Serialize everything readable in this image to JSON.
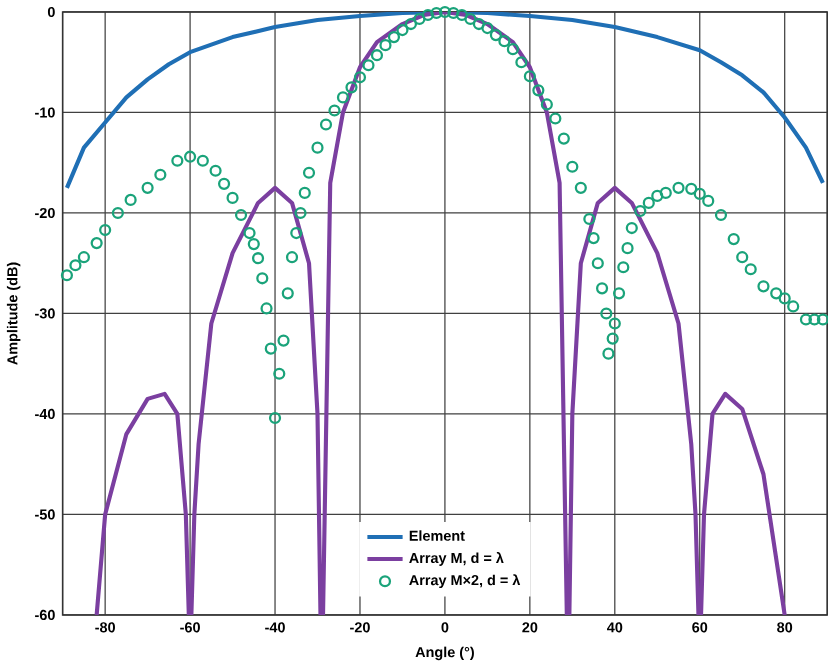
{
  "chart_data": {
    "type": "line",
    "xlabel": "Angle (°)",
    "ylabel": "Amplitude (dB)",
    "xlim": [
      -90,
      90
    ],
    "ylim": [
      -60,
      0
    ],
    "xticks": [
      -80,
      -60,
      -40,
      -20,
      0,
      20,
      40,
      60,
      80
    ],
    "yticks": [
      -60,
      -50,
      -40,
      -30,
      -20,
      -10,
      0
    ],
    "grid": true,
    "legend": "bottom",
    "series": [
      {
        "name": "Element",
        "color": "#1f6fb5",
        "x": [
          -89,
          -85,
          -80,
          -75,
          -70,
          -65,
          -60,
          -50,
          -40,
          -30,
          -20,
          -10,
          0,
          10,
          20,
          30,
          40,
          50,
          60,
          65,
          70,
          75,
          80,
          85,
          89
        ],
        "values": [
          -17.5,
          -13.5,
          -11,
          -8.5,
          -6.7,
          -5.2,
          -4,
          -2.5,
          -1.5,
          -0.8,
          -0.4,
          -0.1,
          0,
          -0.1,
          -0.4,
          -0.8,
          -1.5,
          -2.5,
          -3.8,
          -5,
          -6.3,
          -8,
          -10.5,
          -13.5,
          -17
        ]
      },
      {
        "name": "Array M, d = λ",
        "color": "#7b3fa0",
        "x": [
          -82,
          -80,
          -75,
          -70,
          -66,
          -63,
          -61,
          -60.3,
          -59.7,
          -59,
          -58,
          -55,
          -50,
          -44,
          -40,
          -36,
          -32,
          -30,
          -29.3,
          -28.7,
          -27,
          -24,
          -20,
          -16,
          -10,
          -5,
          0,
          5,
          10,
          16,
          20,
          24,
          27,
          28.7,
          29.3,
          30,
          32,
          36,
          40,
          44,
          50,
          55,
          58,
          59,
          59.7,
          60.3,
          61,
          63,
          66,
          70,
          75,
          80
        ],
        "values": [
          -60,
          -50,
          -42,
          -38.5,
          -38,
          -40,
          -50,
          -60,
          -60,
          -50,
          -43,
          -31,
          -24,
          -19,
          -17.5,
          -19,
          -25,
          -40,
          -60,
          -60,
          -17,
          -10,
          -5.5,
          -3,
          -1.2,
          -0.3,
          0,
          -0.3,
          -1.2,
          -3,
          -5.5,
          -10,
          -17,
          -60,
          -60,
          -40,
          -25,
          -19,
          -17.5,
          -19,
          -24,
          -31,
          -43,
          -50,
          -60,
          -60,
          -50,
          -40,
          -38,
          -39.5,
          -46,
          -60
        ]
      },
      {
        "name": "Array M×2, d = λ",
        "color": "#1aa37a",
        "type": "scatter",
        "marker": "circle",
        "x": [
          -89,
          -87,
          -85,
          -82,
          -80,
          -77,
          -74,
          -70,
          -67,
          -63,
          -60,
          -57,
          -54,
          -52,
          -50,
          -48,
          -46,
          -45,
          -44,
          -43,
          -42,
          -41,
          -40,
          -39,
          -38,
          -37,
          -36,
          -35,
          -34,
          -33,
          -32,
          -30,
          -28,
          -26,
          -24,
          -22,
          -20,
          -18,
          -16,
          -14,
          -12,
          -10,
          -8,
          -6,
          -4,
          -2,
          0,
          2,
          4,
          6,
          8,
          10,
          12,
          14,
          16,
          18,
          20,
          22,
          24,
          26,
          28,
          30,
          32,
          34,
          35,
          36,
          37,
          38,
          38.5,
          39.5,
          40,
          41,
          42,
          43,
          44,
          46,
          48,
          50,
          52,
          55,
          58,
          60,
          62,
          65,
          68,
          70,
          72,
          75,
          78,
          80,
          82,
          85,
          87,
          89
        ],
        "values": [
          -26.2,
          -25.2,
          -24.4,
          -23,
          -21.7,
          -20,
          -18.7,
          -17.5,
          -16.2,
          -14.8,
          -14.4,
          -14.8,
          -15.8,
          -17.1,
          -18.5,
          -20.2,
          -22,
          -23.1,
          -24.5,
          -26.5,
          -29.5,
          -33.5,
          -40.4,
          -36,
          -32.7,
          -28,
          -24.4,
          -22,
          -20,
          -18,
          -16,
          -13.5,
          -11.2,
          -9.8,
          -8.5,
          -7.5,
          -6.5,
          -5.3,
          -4.3,
          -3.3,
          -2.5,
          -1.8,
          -1.2,
          -0.7,
          -0.3,
          -0.1,
          0,
          -0.1,
          -0.3,
          -0.7,
          -1.2,
          -1.6,
          -2.3,
          -2.9,
          -3.7,
          -5,
          -6.4,
          -7.8,
          -9.2,
          -10.6,
          -12.6,
          -15.4,
          -17.5,
          -20.6,
          -22.5,
          -25,
          -27.5,
          -30,
          -34,
          -32.5,
          -31,
          -28,
          -25.4,
          -23.5,
          -21.5,
          -19.8,
          -19,
          -18.3,
          -18,
          -17.5,
          -17.6,
          -18.1,
          -18.8,
          -20.2,
          -22.6,
          -24.4,
          -25.6,
          -27.3,
          -28,
          -28.5,
          -29.3,
          -30.6,
          -30.6,
          -30.6
        ]
      }
    ]
  }
}
